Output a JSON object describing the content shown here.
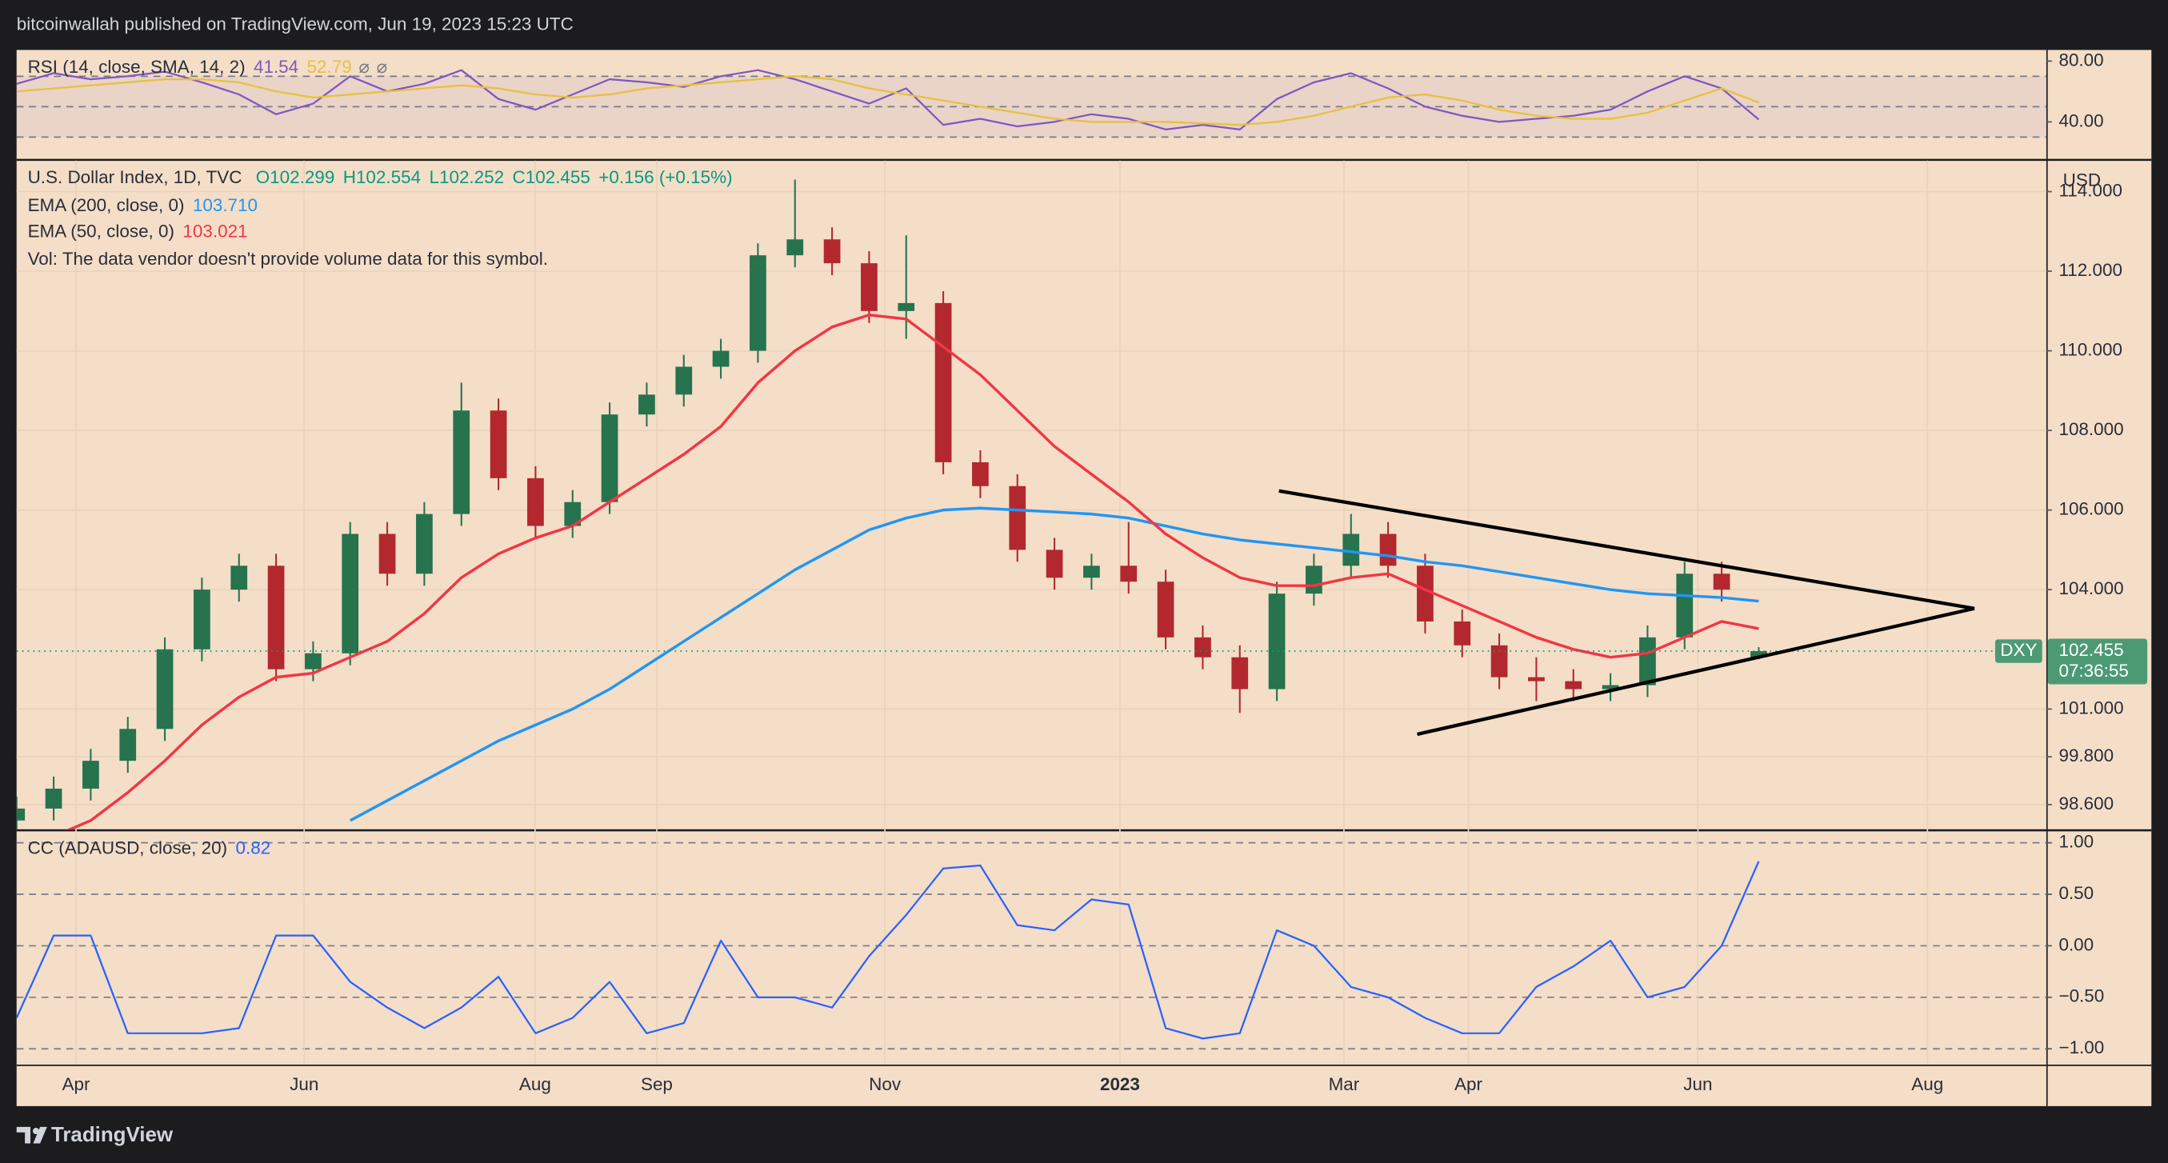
{
  "header": {
    "publisher": "bitcoinwallah published on TradingView.com, Jun 19, 2023 15:23 UTC"
  },
  "footer": {
    "brand": "TradingView"
  },
  "time_axis": {
    "labels": [
      "Apr",
      "Jun",
      "Aug",
      "Sep",
      "Nov",
      "2023",
      "Mar",
      "Apr",
      "Jun",
      "Aug"
    ]
  },
  "chart_data": [
    {
      "type": "line",
      "title": "RSI (14, close, SMA, 14, 2)",
      "status_icons": [
        "⌀",
        "⌀"
      ],
      "series": [
        {
          "color": "#7e57c2",
          "values": [
            65,
            72,
            68,
            70,
            73,
            66,
            58,
            45,
            52,
            70,
            60,
            65,
            74,
            55,
            48,
            58,
            68,
            66,
            63,
            70,
            74,
            68,
            60,
            52,
            62,
            38,
            42,
            37,
            40,
            45,
            42,
            35,
            38,
            35,
            55,
            66,
            72,
            62,
            50,
            44,
            40,
            42,
            44,
            48,
            60,
            70,
            62,
            41.54
          ]
        },
        {
          "color": "#e6c13d",
          "values": [
            60,
            62,
            64,
            66,
            68,
            68,
            66,
            60,
            56,
            58,
            60,
            62,
            64,
            62,
            58,
            56,
            58,
            62,
            64,
            66,
            68,
            70,
            68,
            62,
            58,
            54,
            50,
            46,
            42,
            40,
            40,
            40,
            39,
            38,
            40,
            44,
            50,
            56,
            58,
            54,
            48,
            44,
            42,
            42,
            46,
            54,
            62,
            52.79
          ]
        }
      ],
      "ylim": [
        15.5,
        87.3
      ],
      "yticks": [
        {
          "value": 80,
          "label": "80.00"
        },
        {
          "value": 40,
          "label": "40.00"
        }
      ],
      "levels": [
        70,
        50,
        30
      ],
      "band_color": "#7e57c2"
    },
    {
      "type": "candlestick",
      "title": "U.S. Dollar Index, 1D, TVC",
      "ohlc_text": [
        "O102.299",
        "H102.554",
        "L102.252",
        "C102.455",
        "+0.156 (+0.15%)"
      ],
      "note": "Vol: The data vendor doesn't provide volume data for this symbol.",
      "currency": "USD",
      "symbol": "DXY",
      "countdown": "07:36:55",
      "up_color": "#26734d",
      "down_color": "#b2282e",
      "legend_color": "#089981",
      "open": [
        98.2,
        98.5,
        99.0,
        99.7,
        100.5,
        102.5,
        104.0,
        104.6,
        102.0,
        102.4,
        105.4,
        104.4,
        105.9,
        108.5,
        106.8,
        105.6,
        106.2,
        108.4,
        108.9,
        109.6,
        110.0,
        112.4,
        112.8,
        112.2,
        111.0,
        111.2,
        107.2,
        106.6,
        105.0,
        104.3,
        104.6,
        104.2,
        102.8,
        102.3,
        101.5,
        103.9,
        104.6,
        105.4,
        104.6,
        103.2,
        102.6,
        101.8,
        101.7,
        101.5,
        101.6,
        102.8,
        104.4,
        102.299
      ],
      "high": [
        98.8,
        99.3,
        100.0,
        100.8,
        102.8,
        104.3,
        104.9,
        104.9,
        102.7,
        105.7,
        105.7,
        106.2,
        109.2,
        108.8,
        107.1,
        106.5,
        108.7,
        109.2,
        109.9,
        110.3,
        112.7,
        114.3,
        113.1,
        112.5,
        112.9,
        111.5,
        107.5,
        106.9,
        105.3,
        104.9,
        105.7,
        104.5,
        103.1,
        102.6,
        104.2,
        104.9,
        105.9,
        105.7,
        104.9,
        103.5,
        102.9,
        102.3,
        102.0,
        101.9,
        103.1,
        104.7,
        104.7,
        102.554
      ],
      "low": [
        97.9,
        98.2,
        98.7,
        99.4,
        100.2,
        102.2,
        103.7,
        101.7,
        101.7,
        102.1,
        104.1,
        104.1,
        105.6,
        106.5,
        105.3,
        105.3,
        105.9,
        108.1,
        108.6,
        109.3,
        109.7,
        112.1,
        111.9,
        110.7,
        110.3,
        106.9,
        106.3,
        104.7,
        104.0,
        104.0,
        103.9,
        102.5,
        102.0,
        100.9,
        101.2,
        103.6,
        104.3,
        104.3,
        102.9,
        102.3,
        101.5,
        101.2,
        101.2,
        101.2,
        101.3,
        102.5,
        103.7,
        102.252
      ],
      "close": [
        98.5,
        99.0,
        99.7,
        100.5,
        102.5,
        104.0,
        104.6,
        102.0,
        102.4,
        105.4,
        104.4,
        105.9,
        108.5,
        106.8,
        105.6,
        106.2,
        108.4,
        108.9,
        109.6,
        110.0,
        112.4,
        112.8,
        112.2,
        111.0,
        111.2,
        107.2,
        106.6,
        105.0,
        104.3,
        104.6,
        104.2,
        102.8,
        102.3,
        101.5,
        103.9,
        104.6,
        105.4,
        104.6,
        103.2,
        102.6,
        101.8,
        101.7,
        101.5,
        101.6,
        102.8,
        104.4,
        104.0,
        102.455
      ],
      "overlays": [
        {
          "name": "EMA (200, close, 0)",
          "color": "#2196f3",
          "value_label": "103.710",
          "values": [
            null,
            null,
            null,
            null,
            null,
            null,
            null,
            null,
            null,
            98.2,
            98.7,
            99.2,
            99.7,
            100.2,
            100.6,
            101.0,
            101.5,
            102.1,
            102.7,
            103.3,
            103.9,
            104.5,
            105.0,
            105.5,
            105.8,
            106.0,
            106.05,
            106.0,
            105.95,
            105.9,
            105.8,
            105.6,
            105.4,
            105.25,
            105.15,
            105.05,
            104.95,
            104.85,
            104.7,
            104.6,
            104.45,
            104.3,
            104.15,
            104.0,
            103.9,
            103.85,
            103.8,
            103.71
          ]
        },
        {
          "name": "EMA (50, close, 0)",
          "color": "#f23645",
          "values": [
            97.4,
            97.8,
            98.2,
            98.9,
            99.7,
            100.6,
            101.3,
            101.8,
            101.9,
            102.3,
            102.7,
            103.4,
            104.3,
            104.9,
            105.3,
            105.6,
            106.2,
            106.8,
            107.4,
            108.1,
            109.2,
            110.0,
            110.6,
            110.9,
            110.8,
            110.1,
            109.4,
            108.5,
            107.6,
            106.9,
            106.2,
            105.4,
            104.8,
            104.3,
            104.1,
            104.1,
            104.3,
            104.4,
            104.0,
            103.6,
            103.2,
            102.8,
            102.5,
            102.3,
            102.4,
            102.8,
            103.2,
            103.021
          ]
        }
      ],
      "ylim": [
        97.97,
        114.78
      ],
      "yticks": [
        {
          "value": 114,
          "label": "114.000"
        },
        {
          "value": 112,
          "label": "112.000"
        },
        {
          "value": 110,
          "label": "110.000"
        },
        {
          "value": 108,
          "label": "108.000"
        },
        {
          "value": 106,
          "label": "106.000"
        },
        {
          "value": 104,
          "label": "104.000"
        },
        {
          "value": 101,
          "label": "101.000"
        },
        {
          "value": 99.8,
          "label": "99.800"
        },
        {
          "value": 98.6,
          "label": "98.600"
        }
      ],
      "grid": true
    },
    {
      "type": "line",
      "title": "CC (ADAUSD, close, 20)",
      "series": [
        {
          "color": "#2962ff",
          "values": [
            -0.7,
            0.1,
            0.1,
            -0.85,
            -0.85,
            -0.85,
            -0.8,
            0.1,
            0.1,
            -0.35,
            -0.6,
            -0.8,
            -0.6,
            -0.3,
            -0.85,
            -0.7,
            -0.35,
            -0.85,
            -0.75,
            0.05,
            -0.5,
            -0.5,
            -0.6,
            -0.1,
            0.3,
            0.75,
            0.78,
            0.2,
            0.15,
            0.45,
            0.4,
            -0.8,
            -0.9,
            -0.85,
            0.15,
            0.0,
            -0.4,
            -0.5,
            -0.7,
            -0.85,
            -0.85,
            -0.4,
            -0.2,
            0.05,
            -0.5,
            -0.4,
            0.0,
            0.82
          ]
        }
      ],
      "ylim": [
        -1.154,
        1.114
      ],
      "yticks": [
        {
          "value": 1,
          "label": "1.00"
        },
        {
          "value": 0.5,
          "label": "0.50"
        },
        {
          "value": 0,
          "label": "0.00"
        },
        {
          "value": -0.5,
          "label": "−0.50"
        },
        {
          "value": -1,
          "label": "−1.00"
        }
      ],
      "grid": true
    }
  ]
}
